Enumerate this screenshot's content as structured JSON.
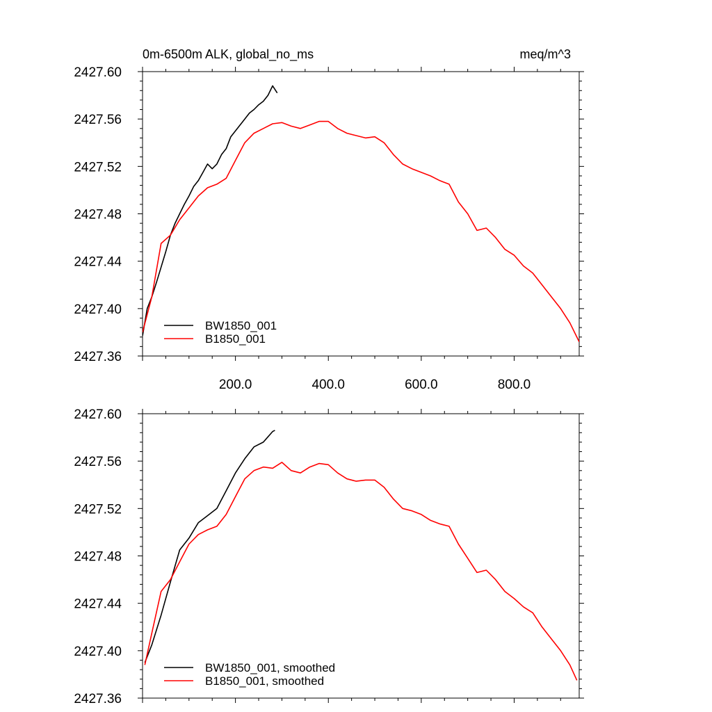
{
  "chart_data": [
    {
      "type": "line",
      "title_left": "0m-6500m ALK, global_no_ms",
      "title_right": "meq/m^3",
      "xlabel": "",
      "ylabel": "",
      "xlim": [
        0,
        940
      ],
      "ylim": [
        2427.36,
        2427.6
      ],
      "x_ticks": [
        200,
        400,
        600,
        800
      ],
      "x_tick_labels": [
        "200.0",
        "400.0",
        "600.0",
        "800.0"
      ],
      "y_ticks": [
        2427.36,
        2427.4,
        2427.44,
        2427.48,
        2427.52,
        2427.56,
        2427.6
      ],
      "y_tick_labels": [
        "2427.36",
        "2427.40",
        "2427.44",
        "2427.48",
        "2427.52",
        "2427.56",
        "2427.60"
      ],
      "grid": false,
      "legend_position": "bottom-left",
      "series": [
        {
          "name": "BW1850_001",
          "color": "#000000",
          "x": [
            0,
            10,
            20,
            30,
            40,
            50,
            60,
            70,
            80,
            90,
            100,
            110,
            120,
            130,
            140,
            150,
            160,
            170,
            180,
            190,
            200,
            210,
            220,
            230,
            240,
            250,
            260,
            270,
            280,
            285,
            290
          ],
          "y": [
            2427.377,
            2427.4,
            2427.41,
            2427.422,
            2427.435,
            2427.448,
            2427.462,
            2427.472,
            2427.48,
            2427.488,
            2427.495,
            2427.503,
            2427.508,
            2427.515,
            2427.522,
            2427.518,
            2427.522,
            2427.53,
            2427.535,
            2427.545,
            2427.55,
            2427.555,
            2427.56,
            2427.565,
            2427.568,
            2427.572,
            2427.575,
            2427.58,
            2427.588,
            2427.585,
            2427.582
          ]
        },
        {
          "name": "B1850_001",
          "color": "#ff0000",
          "x": [
            0,
            20,
            40,
            60,
            80,
            100,
            120,
            140,
            160,
            180,
            200,
            220,
            240,
            260,
            280,
            300,
            320,
            340,
            360,
            380,
            400,
            420,
            440,
            460,
            480,
            500,
            520,
            540,
            560,
            580,
            600,
            620,
            640,
            660,
            680,
            700,
            720,
            740,
            760,
            780,
            800,
            820,
            840,
            860,
            880,
            900,
            920,
            940
          ],
          "y": [
            2427.38,
            2427.41,
            2427.455,
            2427.462,
            2427.475,
            2427.485,
            2427.495,
            2427.502,
            2427.505,
            2427.51,
            2427.525,
            2427.54,
            2427.548,
            2427.552,
            2427.556,
            2427.557,
            2427.554,
            2427.552,
            2427.555,
            2427.558,
            2427.558,
            2427.552,
            2427.548,
            2427.546,
            2427.544,
            2427.545,
            2427.54,
            2427.53,
            2427.522,
            2427.518,
            2427.515,
            2427.512,
            2427.508,
            2427.505,
            2427.49,
            2427.48,
            2427.466,
            2427.468,
            2427.46,
            2427.45,
            2427.445,
            2427.436,
            2427.43,
            2427.42,
            2427.41,
            2427.4,
            2427.388,
            2427.372
          ]
        }
      ]
    },
    {
      "type": "line",
      "xlabel": "",
      "ylabel": "",
      "xlim": [
        0,
        940
      ],
      "ylim": [
        2427.36,
        2427.6
      ],
      "x_ticks": [
        200,
        400,
        600,
        800
      ],
      "y_ticks": [
        2427.36,
        2427.4,
        2427.44,
        2427.48,
        2427.52,
        2427.56,
        2427.6
      ],
      "y_tick_labels": [
        "2427.36",
        "2427.40",
        "2427.44",
        "2427.48",
        "2427.52",
        "2427.56",
        "2427.60"
      ],
      "grid": false,
      "legend_position": "bottom-left",
      "series": [
        {
          "name": "BW1850_001, smoothed",
          "color": "#000000",
          "x": [
            5,
            20,
            40,
            60,
            80,
            100,
            120,
            140,
            160,
            180,
            200,
            220,
            240,
            260,
            280,
            285
          ],
          "y": [
            2427.39,
            2427.405,
            2427.43,
            2427.458,
            2427.485,
            2427.495,
            2427.508,
            2427.514,
            2427.52,
            2427.535,
            2427.55,
            2427.562,
            2427.572,
            2427.576,
            2427.585,
            2427.586
          ]
        },
        {
          "name": "B1850_001, smoothed",
          "color": "#ff0000",
          "x": [
            5,
            20,
            40,
            60,
            80,
            100,
            120,
            140,
            160,
            180,
            200,
            220,
            240,
            260,
            280,
            300,
            320,
            340,
            360,
            380,
            400,
            420,
            440,
            460,
            480,
            500,
            520,
            540,
            560,
            580,
            600,
            620,
            640,
            660,
            680,
            700,
            720,
            740,
            760,
            780,
            800,
            820,
            840,
            860,
            880,
            900,
            920,
            935
          ],
          "y": [
            2427.388,
            2427.415,
            2427.45,
            2427.46,
            2427.475,
            2427.49,
            2427.498,
            2427.502,
            2427.505,
            2427.515,
            2427.53,
            2427.545,
            2427.552,
            2427.555,
            2427.554,
            2427.559,
            2427.552,
            2427.55,
            2427.555,
            2427.558,
            2427.557,
            2427.55,
            2427.545,
            2427.543,
            2427.544,
            2427.544,
            2427.538,
            2427.528,
            2427.52,
            2427.518,
            2427.515,
            2427.51,
            2427.507,
            2427.505,
            2427.49,
            2427.478,
            2427.466,
            2427.468,
            2427.46,
            2427.45,
            2427.444,
            2427.437,
            2427.432,
            2427.42,
            2427.41,
            2427.4,
            2427.388,
            2427.375
          ]
        }
      ]
    }
  ]
}
